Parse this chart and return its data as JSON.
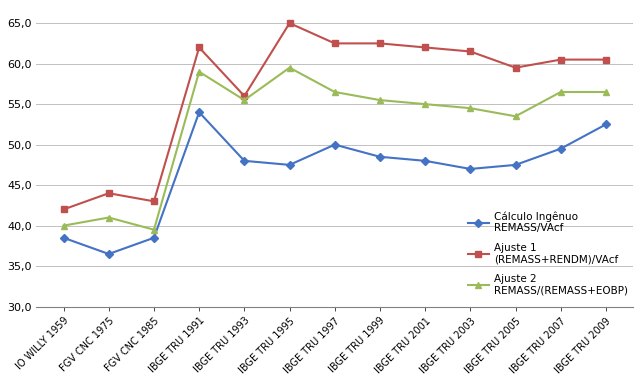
{
  "x_labels": [
    "IO WILLY 1959",
    "FGV CNC 1975",
    "FGV CNC 1985",
    "IBGE TRU 1991",
    "IBGE TRU 1993",
    "IBGE TRU 1995",
    "IBGE TRU 1997",
    "IBGE TRU 1999",
    "IBGE TRU 2001",
    "IBGE TRU 2003",
    "IBGE TRU 2005",
    "IBGE TRU 2007",
    "IBGE TRU 2009"
  ],
  "blue": [
    38.5,
    36.5,
    38.5,
    54.0,
    48.0,
    47.5,
    50.0,
    48.5,
    48.0,
    47.0,
    47.5,
    49.5,
    52.5
  ],
  "red": [
    42.0,
    44.0,
    43.0,
    62.0,
    56.0,
    65.0,
    62.5,
    62.5,
    62.0,
    61.5,
    59.5,
    60.5,
    60.5
  ],
  "green": [
    40.0,
    41.0,
    39.5,
    59.0,
    55.5,
    59.5,
    56.5,
    55.5,
    55.0,
    54.5,
    53.5,
    56.5,
    56.5
  ],
  "blue_color": "#4472C4",
  "red_color": "#C0504D",
  "green_color": "#9BBB59",
  "legend_blue": "Cálculo Ingênuo\nREMASS/VAcf",
  "legend_red": "Ajuste 1\n(REMASS+RENDM)/VAcf",
  "legend_green": "Ajuste 2\nREMASS/(REMASS+EOBP)",
  "ylim_min": 30.0,
  "ylim_max": 67.0,
  "yticks": [
    30.0,
    35.0,
    40.0,
    45.0,
    50.0,
    55.0,
    60.0,
    65.0
  ]
}
